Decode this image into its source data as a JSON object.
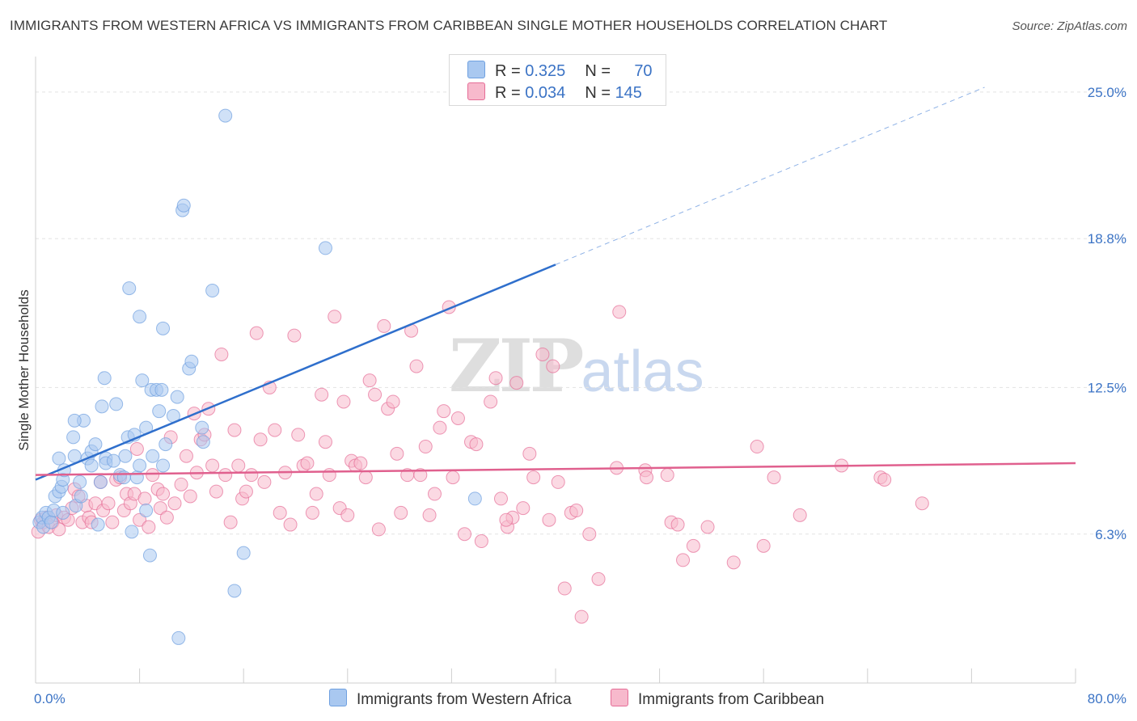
{
  "title": "IMMIGRANTS FROM WESTERN AFRICA VS IMMIGRANTS FROM CARIBBEAN SINGLE MOTHER HOUSEHOLDS CORRELATION CHART",
  "source": "Source: ZipAtlas.com",
  "watermark": {
    "part1": "ZIP",
    "part2": "atlas"
  },
  "legend": {
    "rows": [
      {
        "r_label": "R = ",
        "r_value": "0.325",
        "n_label": "N = ",
        "n_value": "70",
        "color": "#a9c8f0"
      },
      {
        "r_label": "R = ",
        "r_value": "0.034",
        "n_label": "N = ",
        "n_value": "145",
        "color": "#f7b9cc"
      }
    ]
  },
  "bottom_legend": [
    {
      "label": "Immigrants from Western Africa",
      "color": "#a9c8f0"
    },
    {
      "label": "Immigrants from Caribbean",
      "color": "#f7b9cc"
    }
  ],
  "chart_data": {
    "type": "scatter",
    "ylabel": "Single Mother Households",
    "xlim": [
      0,
      80
    ],
    "ylim": [
      0,
      26.5
    ],
    "x_tick_labels": [
      "0.0%",
      "80.0%"
    ],
    "y_ticks": [
      {
        "value": 6.3,
        "label": "6.3%"
      },
      {
        "value": 12.5,
        "label": "12.5%"
      },
      {
        "value": 18.8,
        "label": "18.8%"
      },
      {
        "value": 25.0,
        "label": "25.0%"
      }
    ],
    "series": [
      {
        "name": "Immigrants from Western Africa",
        "color": "#6fa0e0",
        "fill": "#a9c8f0",
        "trend": {
          "x0": 0,
          "y0": 8.6,
          "x1": 40,
          "y1": 17.7,
          "dashed_to_x": 73,
          "dashed_to_y": 25.2
        },
        "points": [
          [
            0.3,
            6.8
          ],
          [
            0.5,
            7.0
          ],
          [
            0.6,
            6.6
          ],
          [
            0.8,
            7.2
          ],
          [
            1.0,
            7.0
          ],
          [
            1.2,
            6.8
          ],
          [
            1.4,
            7.3
          ],
          [
            1.5,
            7.9
          ],
          [
            1.8,
            8.1
          ],
          [
            1.8,
            9.5
          ],
          [
            2.0,
            8.3
          ],
          [
            2.1,
            7.2
          ],
          [
            2.1,
            8.6
          ],
          [
            2.2,
            9.0
          ],
          [
            2.9,
            10.4
          ],
          [
            3.0,
            9.6
          ],
          [
            3.1,
            7.5
          ],
          [
            3.4,
            8.5
          ],
          [
            3.5,
            7.9
          ],
          [
            3.7,
            11.1
          ],
          [
            4.0,
            9.5
          ],
          [
            4.3,
            9.2
          ],
          [
            4.3,
            9.8
          ],
          [
            4.6,
            10.1
          ],
          [
            5.0,
            8.5
          ],
          [
            5.1,
            11.7
          ],
          [
            5.3,
            12.9
          ],
          [
            5.4,
            9.5
          ],
          [
            5.4,
            9.3
          ],
          [
            6.0,
            9.4
          ],
          [
            6.2,
            11.8
          ],
          [
            6.5,
            8.8
          ],
          [
            6.8,
            8.7
          ],
          [
            6.9,
            9.6
          ],
          [
            7.1,
            10.4
          ],
          [
            7.2,
            16.7
          ],
          [
            7.4,
            6.4
          ],
          [
            7.6,
            10.5
          ],
          [
            7.8,
            8.7
          ],
          [
            8.0,
            9.2
          ],
          [
            8.2,
            12.8
          ],
          [
            8.5,
            7.3
          ],
          [
            8.5,
            10.8
          ],
          [
            8.8,
            5.4
          ],
          [
            8.9,
            12.4
          ],
          [
            9.0,
            9.6
          ],
          [
            9.3,
            12.4
          ],
          [
            9.5,
            11.5
          ],
          [
            9.7,
            12.4
          ],
          [
            9.8,
            9.2
          ],
          [
            9.8,
            15.0
          ],
          [
            10.0,
            10.1
          ],
          [
            10.6,
            11.3
          ],
          [
            10.9,
            12.1
          ],
          [
            11.0,
            1.9
          ],
          [
            11.3,
            20.0
          ],
          [
            11.4,
            20.2
          ],
          [
            11.8,
            13.3
          ],
          [
            12.0,
            13.6
          ],
          [
            12.8,
            10.8
          ],
          [
            12.9,
            10.2
          ],
          [
            13.6,
            16.6
          ],
          [
            14.6,
            24.0
          ],
          [
            15.3,
            3.9
          ],
          [
            16.0,
            5.5
          ],
          [
            22.3,
            18.4
          ],
          [
            33.8,
            7.8
          ],
          [
            4.8,
            6.7
          ],
          [
            3.0,
            11.1
          ],
          [
            8.0,
            15.5
          ]
        ]
      },
      {
        "name": "Immigrants from Caribbean",
        "color": "#e56d97",
        "fill": "#f7b9cc",
        "trend": {
          "x0": 0,
          "y0": 8.8,
          "x1": 80,
          "y1": 9.3
        },
        "points": [
          [
            0.2,
            6.4
          ],
          [
            0.4,
            6.9
          ],
          [
            0.6,
            6.8
          ],
          [
            0.8,
            7.0
          ],
          [
            1.0,
            6.6
          ],
          [
            1.3,
            6.8
          ],
          [
            1.6,
            7.1
          ],
          [
            1.8,
            6.5
          ],
          [
            2.2,
            7.0
          ],
          [
            2.5,
            6.9
          ],
          [
            2.8,
            7.4
          ],
          [
            3.0,
            8.2
          ],
          [
            3.3,
            7.9
          ],
          [
            3.6,
            6.8
          ],
          [
            3.9,
            7.5
          ],
          [
            4.1,
            7.0
          ],
          [
            4.3,
            6.8
          ],
          [
            4.6,
            7.6
          ],
          [
            5.0,
            8.5
          ],
          [
            5.2,
            7.3
          ],
          [
            5.6,
            7.6
          ],
          [
            5.9,
            6.8
          ],
          [
            6.2,
            8.6
          ],
          [
            6.5,
            8.7
          ],
          [
            6.8,
            7.3
          ],
          [
            7.0,
            8.0
          ],
          [
            7.3,
            7.6
          ],
          [
            7.6,
            8.0
          ],
          [
            7.8,
            9.9
          ],
          [
            8.0,
            6.9
          ],
          [
            8.4,
            7.8
          ],
          [
            8.7,
            6.6
          ],
          [
            9.0,
            8.8
          ],
          [
            9.4,
            8.2
          ],
          [
            9.6,
            7.4
          ],
          [
            9.8,
            8.0
          ],
          [
            10.1,
            7.0
          ],
          [
            10.4,
            10.4
          ],
          [
            10.7,
            7.6
          ],
          [
            11.2,
            8.4
          ],
          [
            11.6,
            9.6
          ],
          [
            11.9,
            7.9
          ],
          [
            12.2,
            11.4
          ],
          [
            12.4,
            8.9
          ],
          [
            12.7,
            10.3
          ],
          [
            13.0,
            10.5
          ],
          [
            13.3,
            11.6
          ],
          [
            13.6,
            9.2
          ],
          [
            13.9,
            8.1
          ],
          [
            14.3,
            13.9
          ],
          [
            14.6,
            8.8
          ],
          [
            15.0,
            6.8
          ],
          [
            15.3,
            10.7
          ],
          [
            15.6,
            9.2
          ],
          [
            15.9,
            7.8
          ],
          [
            16.2,
            8.1
          ],
          [
            16.6,
            8.8
          ],
          [
            17.0,
            14.8
          ],
          [
            17.3,
            10.3
          ],
          [
            17.6,
            8.5
          ],
          [
            18.0,
            12.5
          ],
          [
            18.4,
            10.7
          ],
          [
            18.8,
            7.2
          ],
          [
            19.2,
            8.9
          ],
          [
            19.6,
            6.7
          ],
          [
            19.9,
            14.7
          ],
          [
            20.2,
            10.5
          ],
          [
            20.6,
            9.2
          ],
          [
            20.9,
            9.3
          ],
          [
            21.3,
            7.2
          ],
          [
            21.6,
            8.0
          ],
          [
            22.0,
            12.2
          ],
          [
            22.3,
            10.2
          ],
          [
            22.6,
            8.8
          ],
          [
            23.0,
            15.5
          ],
          [
            23.4,
            7.4
          ],
          [
            23.7,
            11.9
          ],
          [
            24.0,
            7.1
          ],
          [
            24.3,
            9.4
          ],
          [
            24.6,
            9.2
          ],
          [
            25.0,
            9.3
          ],
          [
            25.4,
            8.7
          ],
          [
            25.7,
            12.8
          ],
          [
            26.1,
            12.2
          ],
          [
            26.4,
            6.5
          ],
          [
            26.8,
            15.1
          ],
          [
            27.1,
            11.6
          ],
          [
            27.5,
            11.9
          ],
          [
            27.8,
            9.7
          ],
          [
            28.1,
            7.2
          ],
          [
            28.6,
            8.8
          ],
          [
            28.9,
            14.9
          ],
          [
            29.3,
            13.4
          ],
          [
            29.6,
            8.8
          ],
          [
            30.0,
            10.0
          ],
          [
            30.3,
            7.1
          ],
          [
            30.7,
            8.0
          ],
          [
            31.1,
            10.8
          ],
          [
            31.4,
            11.5
          ],
          [
            31.8,
            15.9
          ],
          [
            32.1,
            8.7
          ],
          [
            32.5,
            11.2
          ],
          [
            33.0,
            6.3
          ],
          [
            33.5,
            10.2
          ],
          [
            33.9,
            10.1
          ],
          [
            34.3,
            6.0
          ],
          [
            35.0,
            11.9
          ],
          [
            35.4,
            12.9
          ],
          [
            35.8,
            7.8
          ],
          [
            36.3,
            6.6
          ],
          [
            36.7,
            7.0
          ],
          [
            37.0,
            12.7
          ],
          [
            37.5,
            7.4
          ],
          [
            38.0,
            9.7
          ],
          [
            38.3,
            8.7
          ],
          [
            39.0,
            13.9
          ],
          [
            39.5,
            6.9
          ],
          [
            39.8,
            13.4
          ],
          [
            40.2,
            8.5
          ],
          [
            40.7,
            4.0
          ],
          [
            41.2,
            7.2
          ],
          [
            41.6,
            7.3
          ],
          [
            42.0,
            2.8
          ],
          [
            42.6,
            6.3
          ],
          [
            43.3,
            4.4
          ],
          [
            44.7,
            9.1
          ],
          [
            44.9,
            15.7
          ],
          [
            46.9,
            9.0
          ],
          [
            47.0,
            8.7
          ],
          [
            48.6,
            8.8
          ],
          [
            48.9,
            6.8
          ],
          [
            49.4,
            6.7
          ],
          [
            49.8,
            5.2
          ],
          [
            50.6,
            5.8
          ],
          [
            51.7,
            6.6
          ],
          [
            53.7,
            5.1
          ],
          [
            55.5,
            10.0
          ],
          [
            56.0,
            5.8
          ],
          [
            56.8,
            8.7
          ],
          [
            58.8,
            7.1
          ],
          [
            62.0,
            9.2
          ],
          [
            65.0,
            8.7
          ],
          [
            65.3,
            8.6
          ],
          [
            68.2,
            7.6
          ],
          [
            36.2,
            6.9
          ]
        ]
      }
    ]
  }
}
